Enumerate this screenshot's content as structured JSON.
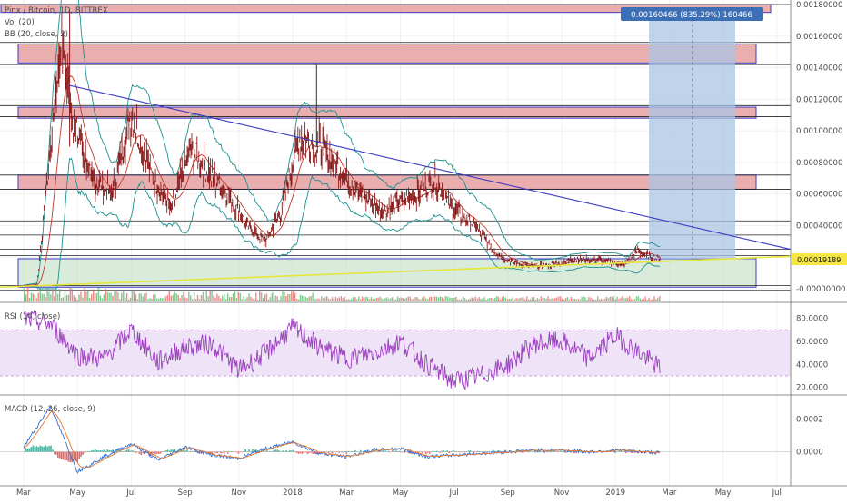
{
  "legend": {
    "symbol": "Pinx / Bitcoin, 1D, BITTREX",
    "volume": "Vol (20)",
    "bb": "BB (20, close, 2)",
    "rsi": "RSI (14, close)",
    "macd": "MACD (12, 26, close, 9)"
  },
  "colors": {
    "price": "#8b1a1a",
    "bb_band": "#1f8f8f",
    "bb_basis": "#c0392b",
    "trendline_down": "#3b3bc4",
    "trendline_up": "#e5e53a",
    "zone_red": "#e8a5a5",
    "zone_green": "#bfe0c4",
    "measure": "#aac4e4",
    "rsi": "#9c3fbf",
    "rsi_band": "#efe4f7",
    "macd_line": "#2f6fd6",
    "signal_line": "#e8762d",
    "hist_pos": "#2aa08a",
    "hist_neg": "#e04545",
    "badge_blue": "#3c6fb5",
    "price_badge": "#f5e642"
  },
  "price_scale_labels": [
    "0.00180000",
    "0.00160000",
    "0.00140000",
    "0.00120000",
    "0.00100000",
    "0.00080000",
    "0.00060000",
    "0.00040000",
    "0.00019189",
    "-0.00000000"
  ],
  "rsi_scale_labels": [
    "80.0000",
    "60.0000",
    "40.0000",
    "20.0000"
  ],
  "macd_scale_labels": [
    "0.0002",
    "0.0000"
  ],
  "time_labels": [
    "Mar",
    "May",
    "Jul",
    "Sep",
    "Nov",
    "2018",
    "Mar",
    "May",
    "Jul",
    "Sep",
    "Nov",
    "2019",
    "Mar",
    "May",
    "Jul"
  ],
  "measure_label": "0.00160466 (835.29%) 160466",
  "last_price_label": "0.00019189",
  "chart_data": [
    {
      "type": "line",
      "title": "Pinx / Bitcoin, 1D, BITTREX",
      "x": [
        "2017-03",
        "2017-04",
        "2017-05",
        "2017-06",
        "2017-07",
        "2017-08",
        "2017-09",
        "2017-10",
        "2017-11",
        "2017-12",
        "2018-01",
        "2018-02",
        "2018-03",
        "2018-04",
        "2018-05",
        "2018-06",
        "2018-07",
        "2018-08",
        "2018-09",
        "2018-10",
        "2018-11",
        "2018-12",
        "2019-01",
        "2019-02"
      ],
      "series": [
        {
          "values": [
            2e-05,
            0.0013,
            0.00105,
            0.0007,
            0.00098,
            0.00065,
            0.00085,
            0.0007,
            0.00035,
            0.0006,
            0.00095,
            0.00075,
            0.00055,
            0.0006,
            0.0007,
            0.00042,
            0.00025,
            0.00015,
            0.00014,
            0.00018,
            0.00018,
            0.00015,
            0.00022,
            0.00019189
          ]
        }
      ],
      "ylim": [
        -1e-05,
        0.00182
      ],
      "annotations": [
        "0.00160466 (835.29%) 160466"
      ],
      "legend": "top-left"
    },
    {
      "type": "line",
      "title": "RSI (14, close)",
      "x": [
        "2017-03",
        "2017-04",
        "2017-05",
        "2017-06",
        "2017-07",
        "2017-08",
        "2017-09",
        "2017-10",
        "2017-11",
        "2017-12",
        "2018-01",
        "2018-02",
        "2018-03",
        "2018-04",
        "2018-05",
        "2018-06",
        "2018-07",
        "2018-08",
        "2018-09",
        "2018-10",
        "2018-11",
        "2018-12",
        "2019-01",
        "2019-02"
      ],
      "series": [
        {
          "values": [
            80,
            75,
            48,
            45,
            70,
            42,
            55,
            58,
            35,
            50,
            72,
            55,
            45,
            50,
            60,
            40,
            25,
            30,
            40,
            58,
            60,
            45,
            65,
            48
          ]
        }
      ],
      "ylim": [
        15,
        90
      ]
    },
    {
      "type": "line",
      "title": "MACD (12, 26, close, 9)",
      "x": [
        "2017-03",
        "2017-04",
        "2017-05",
        "2017-06",
        "2017-07",
        "2017-08",
        "2017-09",
        "2017-10",
        "2017-11",
        "2017-12",
        "2018-01",
        "2018-02",
        "2018-03",
        "2018-04",
        "2018-05",
        "2018-06",
        "2018-07",
        "2018-08",
        "2018-09",
        "2018-10",
        "2018-11",
        "2018-12",
        "2019-01",
        "2019-02"
      ],
      "series": [
        {
          "values": [
            3e-05,
            0.00028,
            -0.00012,
            -3e-05,
            5e-05,
            -5e-05,
            3e-05,
            -2e-05,
            -4e-05,
            2e-05,
            6e-05,
            -1e-05,
            -3e-05,
            1e-05,
            2e-05,
            -3e-05,
            -2e-05,
            -1e-05,
            0.0,
            1e-05,
            1e-05,
            0.0,
            1e-05,
            0.0
          ]
        }
      ],
      "ylim": [
        -0.00018,
        0.00032
      ]
    }
  ]
}
